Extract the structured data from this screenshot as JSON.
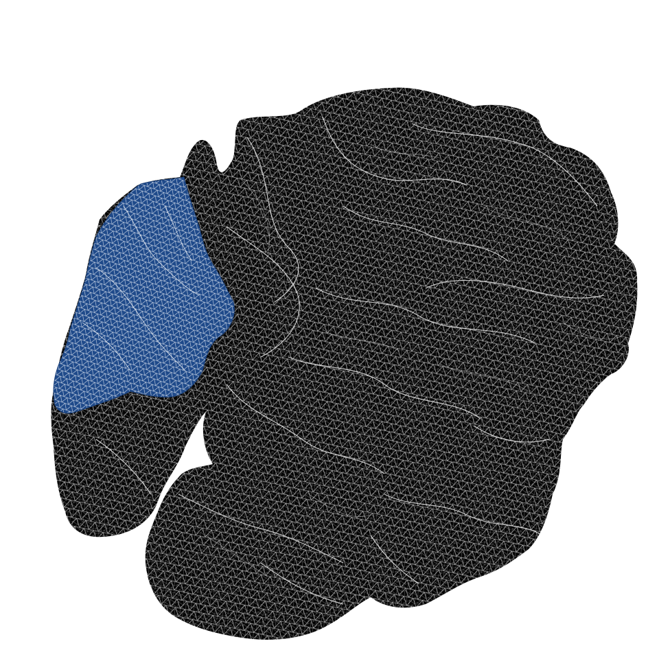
{
  "scene": {
    "subject": "cortical-surface-mesh",
    "background_color": "#ffffff",
    "mesh_fill_color": "#050505",
    "wire_color": "#ffffff",
    "highlight_region": {
      "fill_color": "#1f4a8a",
      "wire_color": "#ffffff"
    }
  }
}
